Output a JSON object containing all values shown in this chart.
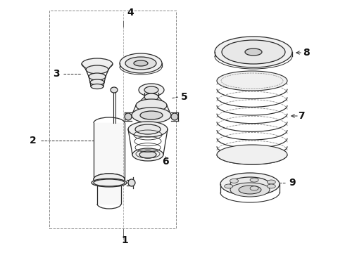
{
  "bg_color": "#ffffff",
  "line_color": "#2a2a2a",
  "fig_width": 4.9,
  "fig_height": 3.6,
  "dpi": 100,
  "font_size": 10,
  "label_color": "#111111"
}
